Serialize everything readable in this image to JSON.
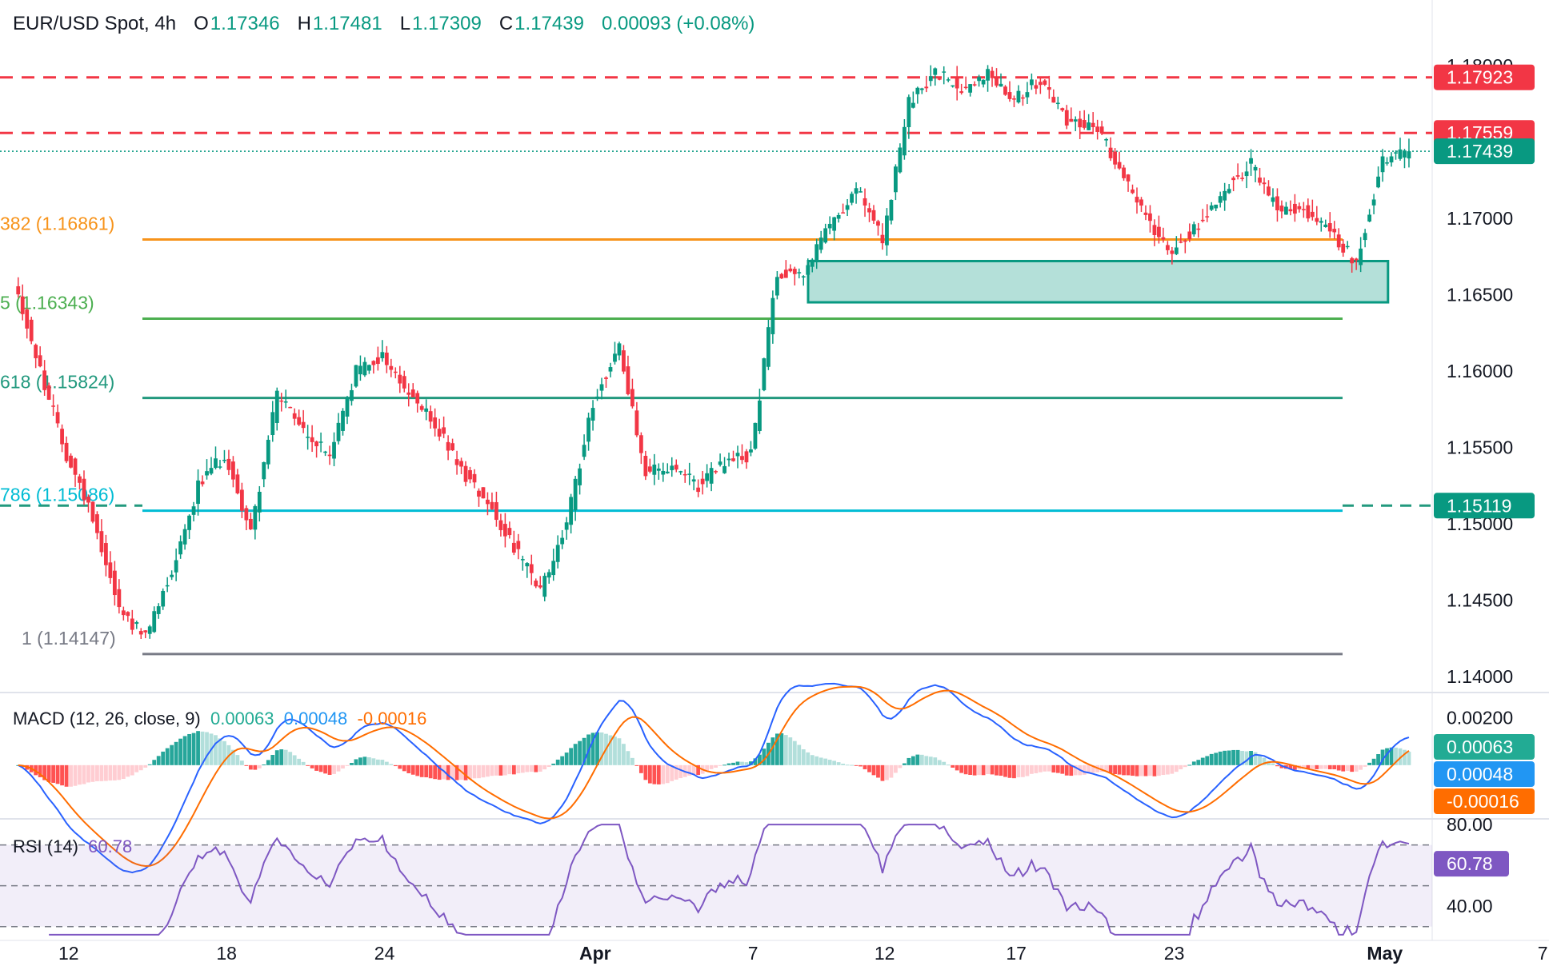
{
  "header": {
    "symbol": "EUR/USD Spot, 4h",
    "o_label": "O",
    "o": "1.17346",
    "h_label": "H",
    "h": "1.17481",
    "l_label": "L",
    "l": "1.17309",
    "c_label": "C",
    "c": "1.17439",
    "change": "0.00093 (+0.08%)"
  },
  "colors": {
    "up": "#089981",
    "down": "#f23645",
    "fib_orange": "#f7931a",
    "fib_green": "#4caf50",
    "fib_teal": "#22997e",
    "fib_cyan": "#00bcd4",
    "fib_grey": "#787b86",
    "macd_line": "#2962ff",
    "signal_line": "#ff6d00",
    "rsi": "#7e57c2",
    "resistance": "#f23645"
  },
  "chart_data": [
    {
      "type": "candlestick",
      "pane": "price",
      "title": "EUR/USD Spot, 4h",
      "ylim": [
        1.1375,
        1.1825
      ],
      "y_ticks": [
        "1.18000",
        "1.17000",
        "1.16500",
        "1.16000",
        "1.15500",
        "1.15000",
        "1.14500",
        "1.14000"
      ],
      "x_ticks": [
        "12",
        "18",
        "24",
        "Apr",
        "7",
        "12",
        "17",
        "23",
        "May",
        "7"
      ],
      "price_badges": [
        {
          "label": "1.17923",
          "color": "#f23645"
        },
        {
          "label": "1.17559",
          "color": "#f23645"
        },
        {
          "label": "1.17439",
          "color": "#089981"
        },
        {
          "label": "1.15119",
          "color": "#089981"
        }
      ],
      "resistance_levels": [
        1.17923,
        1.17559
      ],
      "support_level": 1.15119,
      "current_price": 1.17439,
      "fib_levels": [
        {
          "label": "382 (1.16861)",
          "value": 1.16861,
          "color": "#f7931a"
        },
        {
          "label": "5 (1.16343)",
          "value": 1.16343,
          "color": "#4caf50"
        },
        {
          "label": "618 (1.15824)",
          "value": 1.15824,
          "color": "#22997e"
        },
        {
          "label": "786 (1.15086)",
          "value": 1.15086,
          "color": "#00bcd4"
        },
        {
          "label": "1 (1.14147)",
          "value": 1.14147,
          "color": "#787b86"
        }
      ],
      "zone": {
        "x_start": "Apr 9",
        "x_end": "May 1",
        "y_low": 1.1645,
        "y_high": 1.1672
      },
      "daily_path": [
        {
          "date": "Mar 10",
          "price": 1.166
        },
        {
          "date": "Mar 11",
          "price": 1.16
        },
        {
          "date": "Mar 12",
          "price": 1.1545
        },
        {
          "date": "Mar 13",
          "price": 1.1505
        },
        {
          "date": "Mar 14",
          "price": 1.1445
        },
        {
          "date": "Mar 15",
          "price": 1.1425
        },
        {
          "date": "Mar 16",
          "price": 1.147
        },
        {
          "date": "Mar 17",
          "price": 1.1525
        },
        {
          "date": "Mar 18",
          "price": 1.1545
        },
        {
          "date": "Mar 19",
          "price": 1.1495
        },
        {
          "date": "Mar 20",
          "price": 1.1585
        },
        {
          "date": "Mar 21",
          "price": 1.156
        },
        {
          "date": "Mar 22",
          "price": 1.1545
        },
        {
          "date": "Mar 23",
          "price": 1.16
        },
        {
          "date": "Mar 24",
          "price": 1.161
        },
        {
          "date": "Mar 25",
          "price": 1.1585
        },
        {
          "date": "Mar 26",
          "price": 1.1565
        },
        {
          "date": "Mar 27",
          "price": 1.1535
        },
        {
          "date": "Mar 28",
          "price": 1.1515
        },
        {
          "date": "Mar 29",
          "price": 1.1485
        },
        {
          "date": "Mar 30",
          "price": 1.1455
        },
        {
          "date": "Mar 31",
          "price": 1.15
        },
        {
          "date": "Apr 1",
          "price": 1.158
        },
        {
          "date": "Apr 2",
          "price": 1.1615
        },
        {
          "date": "Apr 3",
          "price": 1.1535
        },
        {
          "date": "Apr 4",
          "price": 1.1535
        },
        {
          "date": "Apr 5",
          "price": 1.1525
        },
        {
          "date": "Apr 6",
          "price": 1.154
        },
        {
          "date": "Apr 7",
          "price": 1.1545
        },
        {
          "date": "Apr 8",
          "price": 1.1665
        },
        {
          "date": "Apr 9",
          "price": 1.1665
        },
        {
          "date": "Apr 10",
          "price": 1.1695
        },
        {
          "date": "Apr 11",
          "price": 1.172
        },
        {
          "date": "Apr 12",
          "price": 1.1685
        },
        {
          "date": "Apr 13",
          "price": 1.1775
        },
        {
          "date": "Apr 14",
          "price": 1.1795
        },
        {
          "date": "Apr 15",
          "price": 1.1785
        },
        {
          "date": "Apr 16",
          "price": 1.1795
        },
        {
          "date": "Apr 17",
          "price": 1.178
        },
        {
          "date": "Apr 18",
          "price": 1.179
        },
        {
          "date": "Apr 19",
          "price": 1.1765
        },
        {
          "date": "Apr 20",
          "price": 1.176
        },
        {
          "date": "Apr 21",
          "price": 1.1735
        },
        {
          "date": "Apr 22",
          "price": 1.17
        },
        {
          "date": "Apr 23",
          "price": 1.168
        },
        {
          "date": "Apr 24",
          "price": 1.1695
        },
        {
          "date": "Apr 25",
          "price": 1.172
        },
        {
          "date": "Apr 26",
          "price": 1.1735
        },
        {
          "date": "Apr 27",
          "price": 1.1705
        },
        {
          "date": "Apr 28",
          "price": 1.1705
        },
        {
          "date": "Apr 29",
          "price": 1.169
        },
        {
          "date": "Apr 30",
          "price": 1.1672
        },
        {
          "date": "May 1",
          "price": 1.1738
        },
        {
          "date": "May 2",
          "price": 1.17439
        }
      ]
    },
    {
      "type": "bar",
      "pane": "macd",
      "title": "MACD (12, 26, close, 9)",
      "values_text": [
        "0.00063",
        "0.00048",
        "-0.00016"
      ],
      "series": [
        {
          "name": "Histogram",
          "last": 0.00063
        },
        {
          "name": "MACD",
          "last": 0.00048
        },
        {
          "name": "Signal",
          "last": -0.00016
        }
      ],
      "y_ticks": [
        "0.00200"
      ],
      "ylim": [
        -0.0022,
        0.003
      ],
      "badges": [
        {
          "label": "0.00063",
          "color": "#22ab94"
        },
        {
          "label": "0.00048",
          "color": "#2196f3"
        },
        {
          "label": "-0.00016",
          "color": "#ff6d00"
        }
      ]
    },
    {
      "type": "line",
      "pane": "rsi",
      "title": "RSI (14)",
      "value_text": "60.78",
      "last": 60.78,
      "levels": [
        70,
        50,
        30
      ],
      "ylim": [
        24,
        82
      ],
      "y_ticks": [
        "80.00",
        "40.00"
      ],
      "badge": {
        "label": "60.78",
        "color": "#7e57c2"
      }
    }
  ]
}
